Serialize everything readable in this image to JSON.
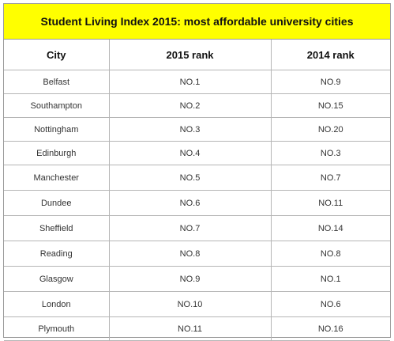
{
  "chart_data": {
    "type": "table",
    "title": "Student Living Index 2015: most affordable university cities",
    "columns": [
      "City",
      "2015 rank",
      "2014 rank"
    ],
    "rows": [
      [
        "Belfast",
        "NO.1",
        "NO.9"
      ],
      [
        "Southampton",
        "NO.2",
        "NO.15"
      ],
      [
        "Nottingham",
        "NO.3",
        "NO.20"
      ],
      [
        "Edinburgh",
        "NO.4",
        "NO.3"
      ],
      [
        "Manchester",
        "NO.5",
        "NO.7"
      ],
      [
        "Dundee",
        "NO.6",
        "NO.11"
      ],
      [
        "Sheffield",
        "NO.7",
        "NO.14"
      ],
      [
        "Reading",
        "NO.8",
        "NO.8"
      ],
      [
        "Glasgow",
        "NO.9",
        "NO.1"
      ],
      [
        "London",
        "NO.10",
        "NO.6"
      ],
      [
        "Plymouth",
        "NO.11",
        "NO.16"
      ]
    ],
    "title_background": "#ffff00"
  }
}
